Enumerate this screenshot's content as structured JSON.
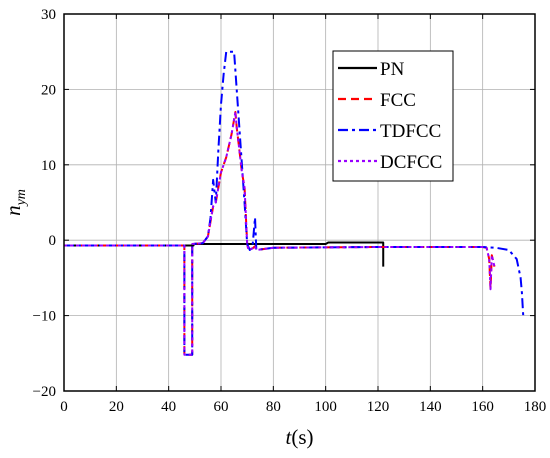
{
  "chart_data": {
    "type": "line",
    "title": "",
    "xlabel_main": "t",
    "xlabel_unit": "(s)",
    "ylabel_main": "n",
    "ylabel_sub": "ym",
    "xlim": [
      0,
      180
    ],
    "ylim": [
      -20,
      30
    ],
    "xticks": [
      0,
      20,
      40,
      60,
      80,
      100,
      120,
      140,
      160,
      180
    ],
    "yticks": [
      -20,
      -10,
      0,
      10,
      20,
      30
    ],
    "grid": true,
    "legend_position": "top-right",
    "series": [
      {
        "name": "PN",
        "color": "#000000",
        "dash": "solid",
        "points": [
          [
            0,
            -0.7
          ],
          [
            49.5,
            -0.7
          ],
          [
            49.6,
            -0.5
          ],
          [
            80,
            -0.5
          ],
          [
            100,
            -0.5
          ],
          [
            101,
            -0.3
          ],
          [
            121.5,
            -0.3
          ],
          [
            122,
            -0.3
          ],
          [
            122,
            -3.5
          ]
        ]
      },
      {
        "name": "FCC",
        "color": "#ff0000",
        "dash": "dash",
        "points": [
          [
            0,
            -0.7
          ],
          [
            46,
            -0.7
          ],
          [
            46,
            -15.2
          ],
          [
            49,
            -15.2
          ],
          [
            49,
            -0.5
          ],
          [
            53,
            -0.4
          ],
          [
            55,
            0.5
          ],
          [
            57,
            4.5
          ],
          [
            58,
            5
          ],
          [
            59,
            7
          ],
          [
            60,
            9
          ],
          [
            62,
            11
          ],
          [
            64,
            14
          ],
          [
            65.5,
            17
          ],
          [
            66,
            15
          ],
          [
            67,
            12
          ],
          [
            68,
            9
          ],
          [
            69,
            7
          ],
          [
            70,
            -0.5
          ],
          [
            70.5,
            -1.3
          ],
          [
            72,
            -1.1
          ],
          [
            73,
            -0.8
          ],
          [
            73.5,
            -1.3
          ],
          [
            80,
            -1
          ],
          [
            120,
            -0.9
          ],
          [
            140,
            -0.9
          ],
          [
            160,
            -0.9
          ],
          [
            161.5,
            -1
          ],
          [
            162.5,
            -2.5
          ],
          [
            163,
            -6.5
          ],
          [
            163.5,
            -2
          ],
          [
            164.5,
            -3.5
          ]
        ]
      },
      {
        "name": "TDFCC",
        "color": "#0000ff",
        "dash": "dashdot",
        "points": [
          [
            0,
            -0.7
          ],
          [
            46,
            -0.7
          ],
          [
            46,
            -15.2
          ],
          [
            49,
            -15.2
          ],
          [
            49,
            -0.5
          ],
          [
            53,
            -0.4
          ],
          [
            55,
            0.5
          ],
          [
            56,
            3
          ],
          [
            57,
            8
          ],
          [
            58,
            5
          ],
          [
            59,
            12
          ],
          [
            60,
            18
          ],
          [
            61,
            22
          ],
          [
            62,
            25
          ],
          [
            65,
            25
          ],
          [
            66,
            20
          ],
          [
            67,
            15
          ],
          [
            68,
            10
          ],
          [
            69,
            5
          ],
          [
            70,
            -0.5
          ],
          [
            71,
            -1.3
          ],
          [
            72,
            -1
          ],
          [
            73,
            3
          ],
          [
            73.5,
            -1.3
          ],
          [
            80,
            -1
          ],
          [
            120,
            -0.9
          ],
          [
            140,
            -0.9
          ],
          [
            160,
            -0.9
          ],
          [
            165,
            -1
          ],
          [
            170,
            -1.3
          ],
          [
            173,
            -2.5
          ],
          [
            174.5,
            -5
          ],
          [
            175,
            -7
          ],
          [
            175.5,
            -10
          ]
        ]
      },
      {
        "name": "DCFCC",
        "color": "#9900ff",
        "dash": "dot",
        "points": [
          [
            0,
            -0.7
          ],
          [
            46,
            -0.7
          ],
          [
            46,
            -15.2
          ],
          [
            49,
            -15.2
          ],
          [
            49,
            -0.5
          ],
          [
            53,
            -0.4
          ],
          [
            55,
            0.5
          ],
          [
            57,
            4.5
          ],
          [
            58,
            5
          ],
          [
            59,
            7
          ],
          [
            60,
            9
          ],
          [
            62,
            11
          ],
          [
            64,
            14
          ],
          [
            65.5,
            17
          ],
          [
            66,
            15
          ],
          [
            67,
            12
          ],
          [
            68,
            9
          ],
          [
            69,
            7
          ],
          [
            70,
            -0.5
          ],
          [
            70.5,
            -1.3
          ],
          [
            72,
            -1.1
          ],
          [
            73,
            -0.8
          ],
          [
            73.5,
            -1.3
          ],
          [
            80,
            -1
          ],
          [
            120,
            -0.9
          ],
          [
            140,
            -0.9
          ],
          [
            160,
            -0.9
          ],
          [
            161.5,
            -1
          ],
          [
            162.5,
            -2.5
          ],
          [
            163,
            -6.5
          ],
          [
            163.5,
            -2
          ],
          [
            164.5,
            -3.5
          ]
        ]
      }
    ]
  }
}
